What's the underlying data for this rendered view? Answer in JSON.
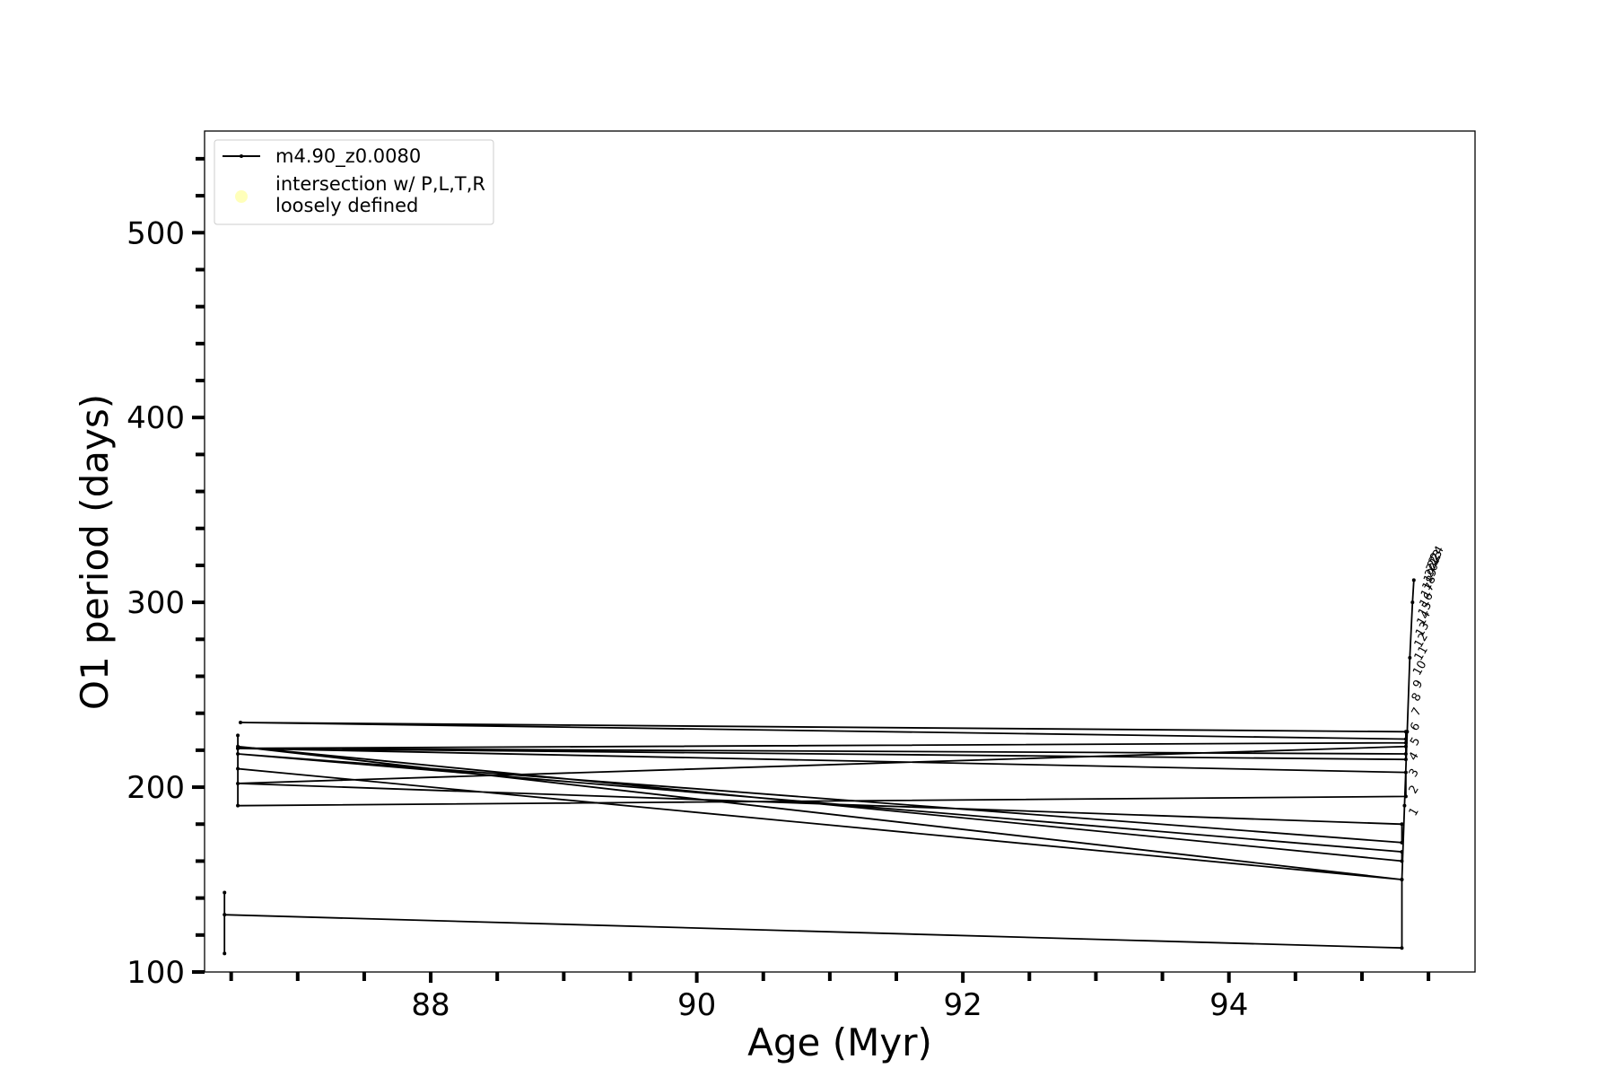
{
  "chart_data": {
    "type": "line",
    "title": "",
    "xlabel": "Age (Myr)",
    "ylabel": "O1 period (days)",
    "xlim": [
      86.3,
      95.85
    ],
    "ylim": [
      100,
      555
    ],
    "x_ticks": [
      88,
      90,
      92,
      94
    ],
    "x_minor_step": 0.5,
    "y_ticks": [
      100,
      200,
      300,
      400,
      500
    ],
    "y_minor_step": 20,
    "grid": false,
    "legend_position": "top-left",
    "legend": [
      {
        "label": "m4.90_z0.0080",
        "marker": "line",
        "color": "#000000"
      },
      {
        "label": "intersection w/ P,L,T,R\nloosely defined",
        "marker": "circle",
        "color": "#ffffb3"
      }
    ],
    "series": [
      {
        "name": "m4.90_z0.0080",
        "color": "#000000",
        "points": [
          [
            86.45,
            110
          ],
          [
            86.45,
            143
          ],
          [
            86.45,
            131
          ],
          [
            95.3,
            113
          ],
          [
            95.3,
            150
          ],
          [
            86.55,
            222
          ],
          [
            95.3,
            160
          ],
          [
            95.3,
            165
          ],
          [
            86.55,
            218
          ],
          [
            95.3,
            170
          ],
          [
            95.3,
            180
          ],
          [
            86.55,
            202
          ],
          [
            95.33,
            222
          ],
          [
            95.33,
            230
          ],
          [
            86.57,
            235
          ],
          [
            95.33,
            226
          ],
          [
            95.33,
            218
          ],
          [
            86.55,
            221
          ],
          [
            95.33,
            224
          ],
          [
            95.33,
            215
          ],
          [
            86.55,
            221
          ],
          [
            95.33,
            208
          ],
          [
            95.33,
            195
          ],
          [
            86.55,
            190
          ],
          [
            86.55,
            228
          ],
          [
            86.55,
            210
          ],
          [
            95.3,
            150
          ],
          [
            95.32,
            190
          ],
          [
            95.34,
            230
          ],
          [
            95.36,
            270
          ],
          [
            95.38,
            300
          ],
          [
            95.39,
            312
          ]
        ]
      }
    ],
    "point_labels": [
      "1",
      "2",
      "3",
      "4",
      "5",
      "6",
      "7",
      "8",
      "9",
      "10",
      "11",
      "12",
      "13",
      "14",
      "15",
      "16",
      "17",
      "18",
      "19",
      "20",
      "21",
      "22",
      "23",
      "24"
    ],
    "point_label_values": [
      184,
      196,
      205,
      214,
      222,
      230,
      238,
      246,
      253,
      260,
      268,
      275,
      281,
      287,
      292,
      297,
      302,
      306,
      310,
      313,
      316,
      318,
      320,
      322
    ],
    "point_label_ages": [
      95.4,
      95.4,
      95.4,
      95.4,
      95.41,
      95.41,
      95.42,
      95.42,
      95.43,
      95.43,
      95.44,
      95.44,
      95.45,
      95.46,
      95.47,
      95.48,
      95.49,
      95.5,
      95.51,
      95.52,
      95.53,
      95.54,
      95.55,
      95.56
    ]
  }
}
